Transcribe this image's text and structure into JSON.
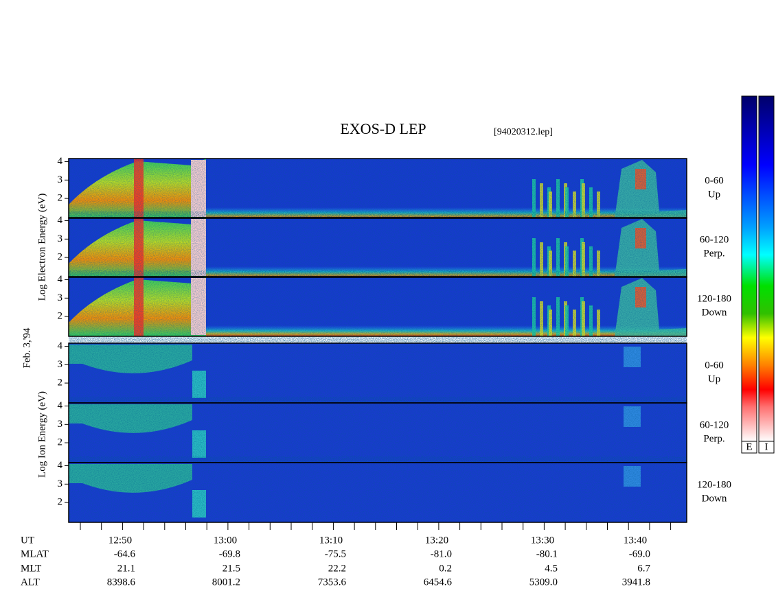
{
  "header": {
    "title": "EXOS-D LEP",
    "file": "[94020312.lep]"
  },
  "date": "Feb. 3,'94",
  "electron_label": "Log Electron Energy (eV)",
  "ion_label": "Log Ion Energy (eV)",
  "ylim": [
    0.92,
    4.17
  ],
  "yticks": [
    2,
    3,
    4
  ],
  "panels": [
    {
      "range": "0-60",
      "direction": "Up"
    },
    {
      "range": "60-120",
      "direction": "Perp."
    },
    {
      "range": "120-180",
      "direction": "Down"
    }
  ],
  "colorbar_labels": [
    "E",
    "I"
  ],
  "ephemeris": {
    "row_labels": [
      "UT",
      "MLAT",
      "MLT",
      "ALT"
    ],
    "columns": [
      [
        "12:50",
        "-64.6",
        "21.1",
        "8398.6"
      ],
      [
        "13:00",
        "-69.8",
        "21.5",
        "8001.2"
      ],
      [
        "13:10",
        "-75.5",
        "22.2",
        "7353.6"
      ],
      [
        "13:20",
        "-81.0",
        "0.2",
        "6454.6"
      ],
      [
        "13:30",
        "-80.1",
        "4.5",
        "5309.0"
      ],
      [
        "13:40",
        "-69.0",
        "6.7",
        "3941.8"
      ]
    ]
  }
}
